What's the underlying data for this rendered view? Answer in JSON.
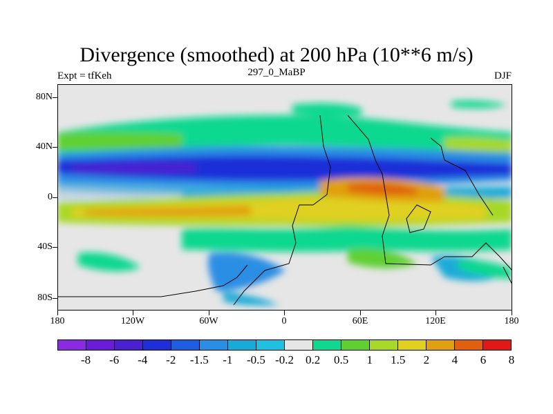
{
  "title": "Divergence (smoothed) at 200 hPa (10**6 m/s)",
  "left_label": "Expt = tfKeh",
  "center_label": "297_0_MaBP",
  "right_label": "DJF",
  "lat_labels": [
    "80N",
    "40N",
    "0",
    "40S",
    "80S"
  ],
  "lon_labels": [
    "180",
    "120W",
    "60W",
    "0",
    "60E",
    "120E",
    "180"
  ],
  "colorbar": {
    "colors": [
      "#8a2be2",
      "#6a1cd8",
      "#4a20d0",
      "#1f2fd8",
      "#1f5ee0",
      "#2a8ee4",
      "#1aaad8",
      "#20c0e0",
      "#e6e6e6",
      "#10d890",
      "#60d030",
      "#a8d828",
      "#e0d020",
      "#e0a010",
      "#e06010",
      "#e01818"
    ],
    "labels": [
      "-8",
      "-6",
      "-4",
      "-2",
      "-1.5",
      "-1",
      "-0.5",
      "-0.2",
      "0.2",
      "0.5",
      "1",
      "1.5",
      "2",
      "4",
      "6",
      "8"
    ]
  }
}
